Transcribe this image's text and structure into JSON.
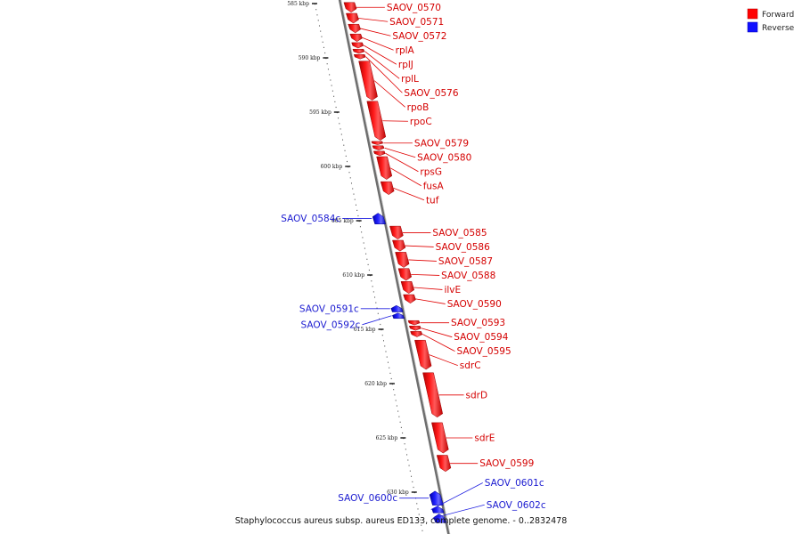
{
  "legend": {
    "forward_label": "Forward",
    "reverse_label": "Reverse",
    "forward_color": "#ff0000",
    "reverse_color": "#1010ff"
  },
  "caption": "Staphylococcus aureus subsp. aureus ED133, complete genome. - 0..2832478",
  "ruler": {
    "ticks": [
      {
        "kbp": 585,
        "label": "585 kbp"
      },
      {
        "kbp": 590,
        "label": "590 kbp"
      },
      {
        "kbp": 595,
        "label": "595 kbp"
      },
      {
        "kbp": 600,
        "label": "600 kbp"
      },
      {
        "kbp": 605,
        "label": "605 kbp"
      },
      {
        "kbp": 610,
        "label": "610 kbp"
      },
      {
        "kbp": 615,
        "label": "615 kbp"
      },
      {
        "kbp": 620,
        "label": "620 kbp"
      },
      {
        "kbp": 625,
        "label": "625 kbp"
      },
      {
        "kbp": 630,
        "label": "630 kbp"
      }
    ]
  },
  "genes": [
    {
      "name": "SAOV_0570",
      "strand": "forward",
      "start_kbp": 584.9,
      "end_kbp": 585.8
    },
    {
      "name": "SAOV_0571",
      "strand": "forward",
      "start_kbp": 585.9,
      "end_kbp": 586.8
    },
    {
      "name": "SAOV_0572",
      "strand": "forward",
      "start_kbp": 586.9,
      "end_kbp": 587.7
    },
    {
      "name": "rplA",
      "strand": "forward",
      "start_kbp": 587.8,
      "end_kbp": 588.5
    },
    {
      "name": "rplJ",
      "strand": "forward",
      "start_kbp": 588.6,
      "end_kbp": 589.1
    },
    {
      "name": "rplL",
      "strand": "forward",
      "start_kbp": 589.2,
      "end_kbp": 589.6
    },
    {
      "name": "SAOV_0576",
      "strand": "forward",
      "start_kbp": 589.7,
      "end_kbp": 590.1
    },
    {
      "name": "rpoB",
      "strand": "forward",
      "start_kbp": 590.3,
      "end_kbp": 593.9
    },
    {
      "name": "rpoC",
      "strand": "forward",
      "start_kbp": 594.0,
      "end_kbp": 597.6
    },
    {
      "name": "SAOV_0579",
      "strand": "forward",
      "start_kbp": 597.7,
      "end_kbp": 598.0
    },
    {
      "name": "SAOV_0580",
      "strand": "forward",
      "start_kbp": 598.1,
      "end_kbp": 598.5
    },
    {
      "name": "rpsG",
      "strand": "forward",
      "start_kbp": 598.6,
      "end_kbp": 599.0
    },
    {
      "name": "fusA",
      "strand": "forward",
      "start_kbp": 599.1,
      "end_kbp": 601.2
    },
    {
      "name": "tuf",
      "strand": "forward",
      "start_kbp": 601.4,
      "end_kbp": 602.6
    },
    {
      "name": "SAOV_0584c",
      "strand": "reverse",
      "start_kbp": 604.3,
      "end_kbp": 605.3
    },
    {
      "name": "SAOV_0585",
      "strand": "forward",
      "start_kbp": 605.5,
      "end_kbp": 606.7
    },
    {
      "name": "SAOV_0586",
      "strand": "forward",
      "start_kbp": 606.8,
      "end_kbp": 607.8
    },
    {
      "name": "SAOV_0587",
      "strand": "forward",
      "start_kbp": 607.9,
      "end_kbp": 609.3
    },
    {
      "name": "SAOV_0588",
      "strand": "forward",
      "start_kbp": 609.4,
      "end_kbp": 610.5
    },
    {
      "name": "ilvE",
      "strand": "forward",
      "start_kbp": 610.6,
      "end_kbp": 611.7
    },
    {
      "name": "SAOV_0590",
      "strand": "forward",
      "start_kbp": 611.8,
      "end_kbp": 612.6
    },
    {
      "name": "SAOV_0591c",
      "strand": "reverse",
      "start_kbp": 612.8,
      "end_kbp": 613.4
    },
    {
      "name": "SAOV_0592c",
      "strand": "reverse",
      "start_kbp": 613.5,
      "end_kbp": 614.0
    },
    {
      "name": "SAOV_0593",
      "strand": "forward",
      "start_kbp": 614.2,
      "end_kbp": 614.6
    },
    {
      "name": "SAOV_0594",
      "strand": "forward",
      "start_kbp": 614.7,
      "end_kbp": 615.1
    },
    {
      "name": "SAOV_0595",
      "strand": "forward",
      "start_kbp": 615.2,
      "end_kbp": 615.7
    },
    {
      "name": "sdrC",
      "strand": "forward",
      "start_kbp": 616.0,
      "end_kbp": 618.7
    },
    {
      "name": "sdrD",
      "strand": "forward",
      "start_kbp": 619.0,
      "end_kbp": 623.1
    },
    {
      "name": "sdrE",
      "strand": "forward",
      "start_kbp": 623.6,
      "end_kbp": 626.4
    },
    {
      "name": "SAOV_0599",
      "strand": "forward",
      "start_kbp": 626.6,
      "end_kbp": 628.1
    },
    {
      "name": "SAOV_0600c",
      "strand": "reverse",
      "start_kbp": 629.9,
      "end_kbp": 631.2
    },
    {
      "name": "SAOV_0601c",
      "strand": "reverse",
      "start_kbp": 631.3,
      "end_kbp": 631.9
    },
    {
      "name": "SAOV_0602c",
      "strand": "reverse",
      "start_kbp": 632.0,
      "end_kbp": 632.8
    }
  ]
}
